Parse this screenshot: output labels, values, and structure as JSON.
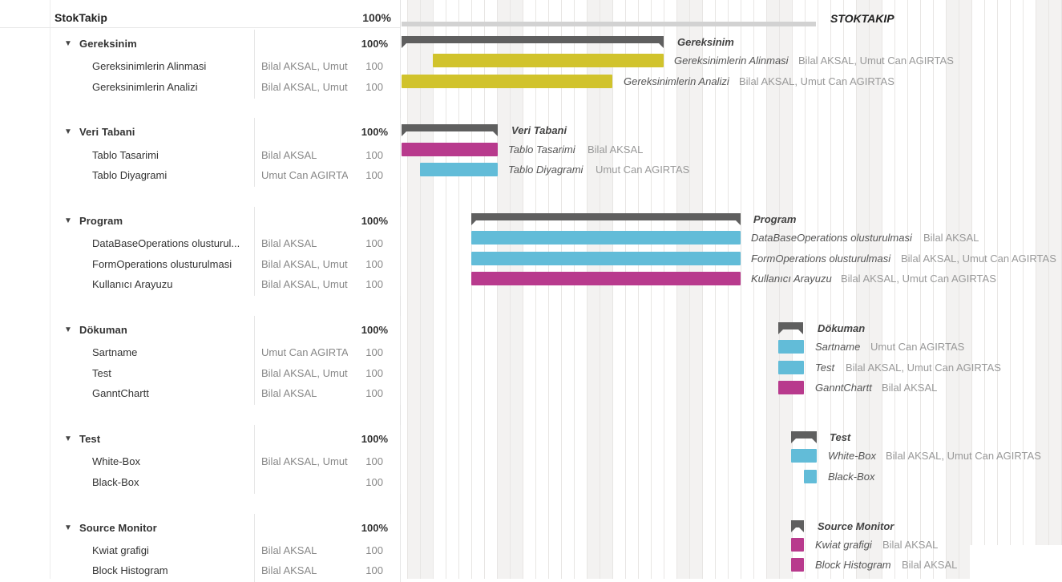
{
  "project": {
    "name": "StokTakip",
    "percent": "100%",
    "chart_label": "STOKTAKIP"
  },
  "colors": {
    "yellow": "#d1c32c",
    "magenta": "#b83a8d",
    "cyan": "#62bcd8",
    "group_bar": "#5f5f5f",
    "project_bar": "#d2d2d2"
  },
  "groups": [
    {
      "name": "Gereksinim",
      "percent": "100%",
      "chart_label": "Gereksinim",
      "tasks": [
        {
          "name": "Gereksinimlerin Alinmasi",
          "resources": "Bilal AKSAL, Umut",
          "percent": "100",
          "chart_label": "Gereksinimlerin Alinmasi",
          "chart_resources": "Bilal AKSAL, Umut Can AGIRTAS",
          "color": "yellow"
        },
        {
          "name": "Gereksinimlerin Analizi",
          "resources": "Bilal AKSAL, Umut",
          "percent": "100",
          "chart_label": "Gereksinimlerin Analizi",
          "chart_resources": "Bilal AKSAL, Umut Can AGIRTAS",
          "color": "yellow"
        }
      ]
    },
    {
      "name": "Veri Tabani",
      "percent": "100%",
      "chart_label": "Veri Tabani",
      "tasks": [
        {
          "name": "Tablo Tasarimi",
          "resources": "Bilal AKSAL",
          "percent": "100",
          "chart_label": "Tablo Tasarimi",
          "chart_resources": "Bilal AKSAL",
          "color": "magenta"
        },
        {
          "name": "Tablo Diyagrami",
          "resources": "Umut Can AGIRTA",
          "percent": "100",
          "chart_label": "Tablo Diyagrami",
          "chart_resources": "Umut Can AGIRTAS",
          "color": "cyan"
        }
      ]
    },
    {
      "name": "Program",
      "percent": "100%",
      "chart_label": "Program",
      "tasks": [
        {
          "name": "DataBaseOperations olusturul...",
          "resources": "Bilal AKSAL",
          "percent": "100",
          "chart_label": "DataBaseOperations olusturulmasi",
          "chart_resources": "Bilal AKSAL",
          "color": "cyan"
        },
        {
          "name": "FormOperations olusturulmasi",
          "resources": "Bilal AKSAL, Umut",
          "percent": "100",
          "chart_label": "FormOperations olusturulmasi",
          "chart_resources": "Bilal AKSAL, Umut Can AGIRTAS",
          "color": "cyan"
        },
        {
          "name": "Kullanıcı Arayuzu",
          "resources": "Bilal AKSAL, Umut",
          "percent": "100",
          "chart_label": "Kullanıcı Arayuzu",
          "chart_resources": "Bilal AKSAL, Umut Can AGIRTAS",
          "color": "magenta"
        }
      ]
    },
    {
      "name": "Dökuman",
      "percent": "100%",
      "chart_label": "Dökuman",
      "tasks": [
        {
          "name": "Sartname",
          "resources": "Umut Can AGIRTA",
          "percent": "100",
          "chart_label": "Sartname",
          "chart_resources": "Umut Can AGIRTAS",
          "color": "cyan"
        },
        {
          "name": "Test",
          "resources": "Bilal AKSAL, Umut",
          "percent": "100",
          "chart_label": "Test",
          "chart_resources": "Bilal AKSAL, Umut Can AGIRTAS",
          "color": "cyan"
        },
        {
          "name": "GanntChartt",
          "resources": "Bilal AKSAL",
          "percent": "100",
          "chart_label": "GanntChartt",
          "chart_resources": "Bilal AKSAL",
          "color": "magenta"
        }
      ]
    },
    {
      "name": "Test",
      "percent": "100%",
      "chart_label": "Test",
      "tasks": [
        {
          "name": "White-Box",
          "resources": "Bilal AKSAL, Umut",
          "percent": "100",
          "chart_label": "White-Box",
          "chart_resources": "Bilal AKSAL, Umut Can AGIRTAS",
          "color": "cyan"
        },
        {
          "name": "Black-Box",
          "resources": "",
          "percent": "100",
          "chart_label": "Black-Box",
          "chart_resources": "",
          "color": "cyan"
        }
      ]
    },
    {
      "name": "Source Monitor",
      "percent": "100%",
      "chart_label": "Source Monitor",
      "tasks": [
        {
          "name": "Kwiat grafigi",
          "resources": "Bilal AKSAL",
          "percent": "100",
          "chart_label": "Kwiat grafigi",
          "chart_resources": "Bilal AKSAL",
          "color": "magenta"
        },
        {
          "name": "Block Histogram",
          "resources": "Bilal AKSAL",
          "percent": "100",
          "chart_label": "Block Histogram",
          "chart_resources": "Bilal AKSAL",
          "color": "magenta"
        }
      ]
    }
  ]
}
